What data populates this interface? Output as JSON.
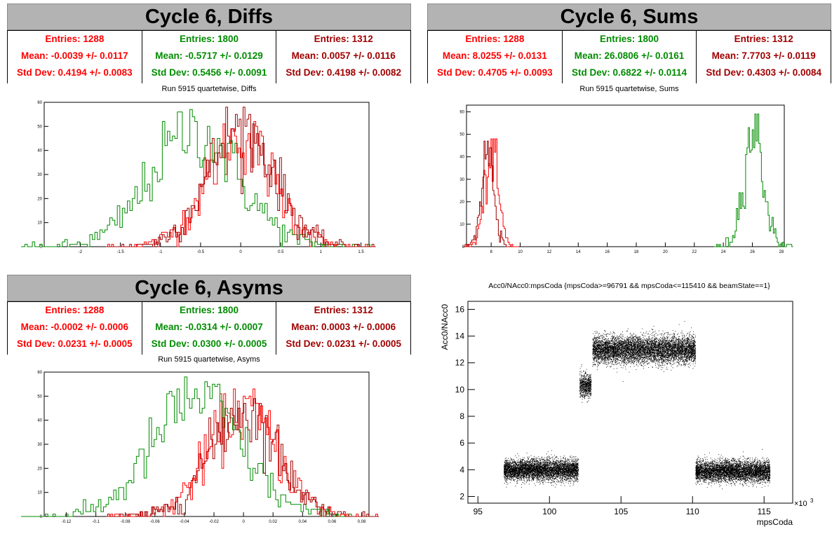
{
  "colors": {
    "red": "#ff0000",
    "green": "#008c00",
    "darkred": "#a00000"
  },
  "panels": {
    "diffs": {
      "title": "Cycle 6, Diffs",
      "subtitle": "Run 5915 quartetwise, Diffs",
      "stats": [
        {
          "entries": "Entries: 1288",
          "mean": "Mean: -0.0039 +/- 0.0117",
          "std": "Std Dev: 0.4194 +/- 0.0083",
          "color": "#ff0000"
        },
        {
          "entries": "Entries: 1800",
          "mean": "Mean: -0.5717 +/- 0.0129",
          "std": "Std Dev: 0.5456 +/- 0.0091",
          "color": "#008c00"
        },
        {
          "entries": "Entries: 1312",
          "mean": "Mean: 0.0057 +/- 0.0116",
          "std": "Std Dev: 0.4198 +/- 0.0082",
          "color": "#a00000"
        }
      ]
    },
    "sums": {
      "title": "Cycle 6, Sums",
      "subtitle": "Run 5915 quartetwise, Sums",
      "stats": [
        {
          "entries": "Entries: 1288",
          "mean": "Mean: 8.0255 +/- 0.0131",
          "std": "Std Dev: 0.4705 +/- 0.0093",
          "color": "#ff0000"
        },
        {
          "entries": "Entries: 1800",
          "mean": "Mean: 26.0806 +/- 0.0161",
          "std": "Std Dev: 0.6822 +/- 0.0114",
          "color": "#008c00"
        },
        {
          "entries": "Entries: 1312",
          "mean": "Mean: 7.7703 +/- 0.0119",
          "std": "Std Dev: 0.4303 +/- 0.0084",
          "color": "#a00000"
        }
      ]
    },
    "asyms": {
      "title": "Cycle 6, Asyms",
      "subtitle": "Run 5915 quartetwise, Asyms",
      "stats": [
        {
          "entries": "Entries: 1288",
          "mean": "Mean: -0.0002 +/- 0.0006",
          "std": "Std Dev: 0.0231 +/- 0.0005",
          "color": "#ff0000"
        },
        {
          "entries": "Entries: 1800",
          "mean": "Mean: -0.0314 +/- 0.0007",
          "std": "Std Dev: 0.0300 +/- 0.0005",
          "color": "#008c00"
        },
        {
          "entries": "Entries: 1312",
          "mean": "Mean: 0.0003 +/- 0.0006",
          "std": "Std Dev: 0.0231 +/- 0.0005",
          "color": "#a00000"
        }
      ]
    },
    "scatter": {
      "subtitle": "Acc0/NAcc0:mpsCoda {mpsCoda>=96791 && mpsCoda<=115410 && beamState==1}"
    }
  },
  "chart_data": [
    {
      "id": "diffs",
      "type": "histogram",
      "xlim": [
        -2.45,
        1.6
      ],
      "ylim": [
        0,
        60
      ],
      "xticks": [
        -2,
        -1.5,
        -1,
        -0.5,
        0,
        0.5,
        1,
        1.5
      ],
      "yticks": [
        0,
        10,
        20,
        30,
        40,
        50,
        60
      ],
      "series": [
        {
          "color": "#ff0000",
          "mean": -0.0039,
          "std": 0.4194,
          "peak": 53,
          "bins": 140
        },
        {
          "color": "#008c00",
          "mean": -0.5717,
          "std": 0.5456,
          "peak": 57,
          "bins": 140
        },
        {
          "color": "#a00000",
          "mean": 0.0057,
          "std": 0.4198,
          "peak": 58,
          "bins": 140
        }
      ]
    },
    {
      "id": "sums",
      "type": "histogram",
      "xlim": [
        6.3,
        28.2
      ],
      "ylim": [
        0,
        63
      ],
      "xticks": [
        8,
        10,
        12,
        14,
        16,
        18,
        20,
        22,
        24,
        26,
        28
      ],
      "yticks": [
        0,
        10,
        20,
        30,
        40,
        50,
        60
      ],
      "series": [
        {
          "color": "#ff0000",
          "mean": 8.0255,
          "std": 0.4705,
          "peak": 48,
          "bins": 45
        },
        {
          "color": "#008c00",
          "mean": 26.0806,
          "std": 0.6822,
          "peak": 61,
          "bins": 60
        },
        {
          "color": "#a00000",
          "mean": 7.7703,
          "std": 0.4303,
          "peak": 51,
          "bins": 45
        }
      ]
    },
    {
      "id": "asyms",
      "type": "histogram",
      "xlim": [
        -0.135,
        0.085
      ],
      "ylim": [
        0,
        60
      ],
      "xticks": [
        -0.12,
        -0.1,
        -0.08,
        -0.06,
        -0.04,
        -0.02,
        0,
        0.02,
        0.04,
        0.06,
        0.08
      ],
      "yticks": [
        0,
        10,
        20,
        30,
        40,
        50,
        60
      ],
      "series": [
        {
          "color": "#ff0000",
          "mean": -0.0002,
          "std": 0.0231,
          "peak": 53,
          "bins": 140
        },
        {
          "color": "#008c00",
          "mean": -0.0314,
          "std": 0.03,
          "peak": 58,
          "bins": 140
        },
        {
          "color": "#a00000",
          "mean": 0.0003,
          "std": 0.0231,
          "peak": 52,
          "bins": 140
        }
      ]
    },
    {
      "id": "scatter",
      "type": "scatter",
      "title": "Acc0/NAcc0:mpsCoda {mpsCoda>=96791 && mpsCoda<=115410 && beamState==1}",
      "xlabel": "mpsCoda",
      "ylabel": "Acc0/NAcc0",
      "xexp": "×10",
      "xexp_sup": "3",
      "xlim": [
        94.3,
        117.0
      ],
      "ylim": [
        1.5,
        16.6
      ],
      "xticks": [
        95,
        100,
        105,
        110,
        115
      ],
      "yticks": [
        2,
        4,
        6,
        8,
        10,
        12,
        14,
        16
      ],
      "clusters": [
        {
          "x": [
            96.8,
            102.0
          ],
          "y_center": 4.0,
          "y_spread": 0.7,
          "count": 5200
        },
        {
          "x": [
            102.1,
            102.9
          ],
          "y_center": 10.3,
          "y_spread": 0.8,
          "count": 700
        },
        {
          "x": [
            103.0,
            110.2
          ],
          "y_center": 13.0,
          "y_spread": 0.9,
          "count": 6800
        },
        {
          "x": [
            110.2,
            115.4
          ],
          "y_center": 3.9,
          "y_spread": 0.7,
          "count": 5200
        }
      ]
    }
  ]
}
